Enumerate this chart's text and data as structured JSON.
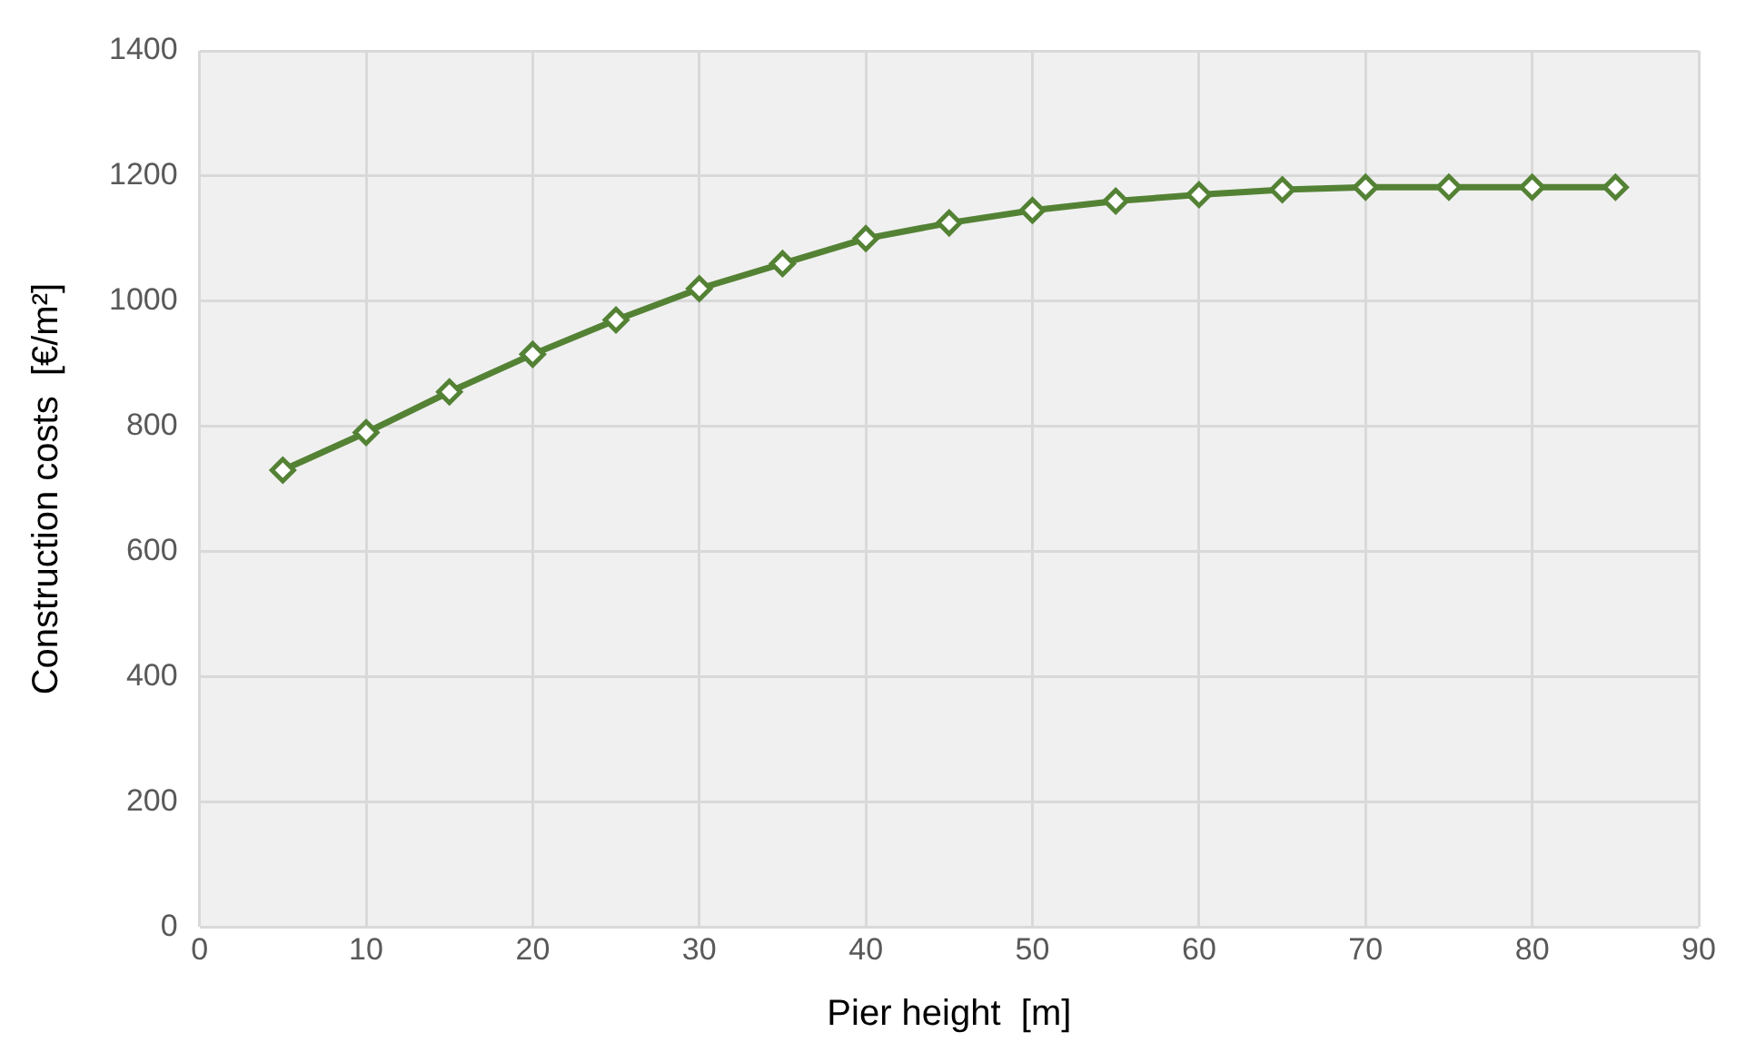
{
  "chart_data": {
    "type": "line",
    "xlabel": "Pier height  [m]",
    "ylabel": "Construction costs  [€/m²]",
    "x": [
      5,
      10,
      15,
      20,
      25,
      30,
      35,
      40,
      45,
      50,
      55,
      60,
      65,
      70,
      75,
      80,
      85
    ],
    "series": [
      {
        "color": "#548235",
        "values": [
          730,
          790,
          855,
          915,
          970,
          1020,
          1060,
          1100,
          1125,
          1145,
          1160,
          1170,
          1178,
          1182,
          1182,
          1182,
          1182
        ]
      }
    ],
    "xlim": [
      0,
      90
    ],
    "xticks": [
      0,
      10,
      20,
      30,
      40,
      50,
      60,
      70,
      80,
      90
    ],
    "ylim": [
      0,
      1400
    ],
    "yticks": [
      0,
      200,
      400,
      600,
      800,
      1000,
      1200,
      1400
    ],
    "grid": true,
    "legend": false,
    "marker": "diamond",
    "line_style": "solid"
  }
}
